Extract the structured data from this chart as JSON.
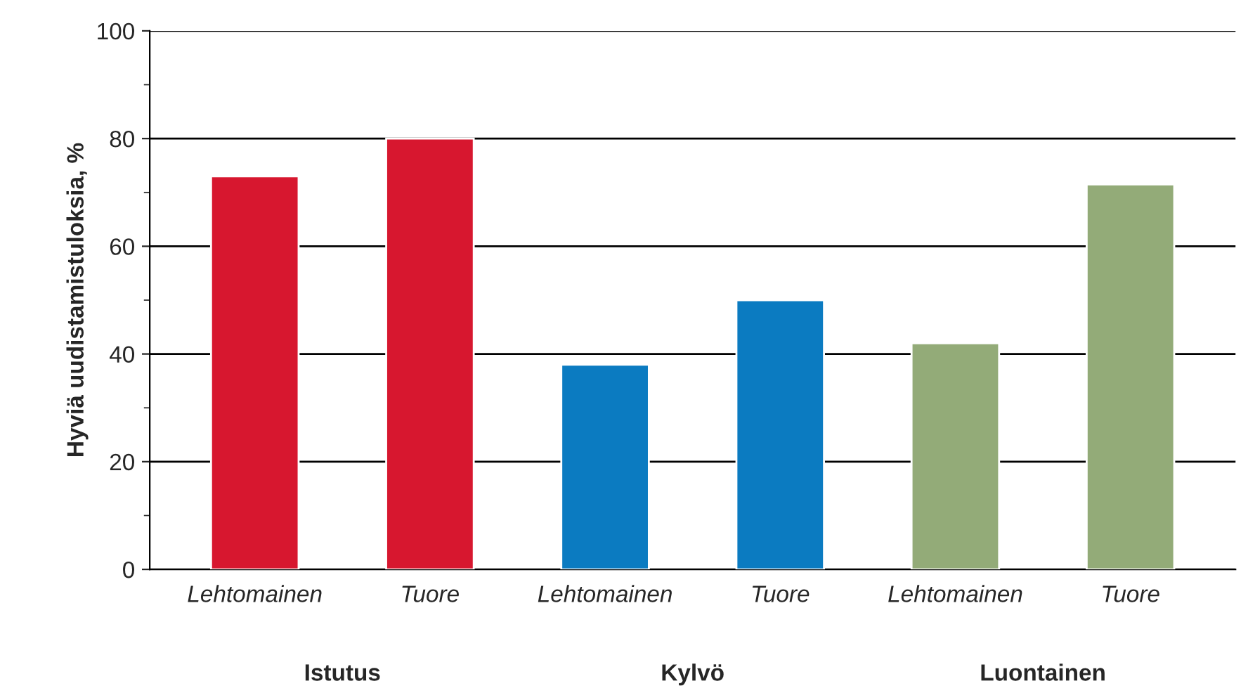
{
  "chart_data": {
    "type": "bar",
    "ylabel": "Hyviä uudistamistuloksia, %",
    "categories": [
      "Lehtomainen",
      "Tuore",
      "Lehtomainen",
      "Tuore",
      "Lehtomainen",
      "Tuore"
    ],
    "values": [
      73,
      80,
      38,
      50,
      42,
      71.5
    ],
    "colors": [
      "#d7172f",
      "#d7172f",
      "#0b7bc1",
      "#0b7bc1",
      "#93ab78",
      "#93ab78"
    ],
    "ylim": [
      0,
      100
    ],
    "yticks": [
      0,
      20,
      40,
      60,
      80,
      100
    ],
    "grid": "y",
    "annotations": [
      "Istutus",
      "Kylvö",
      "Luontainen"
    ]
  }
}
